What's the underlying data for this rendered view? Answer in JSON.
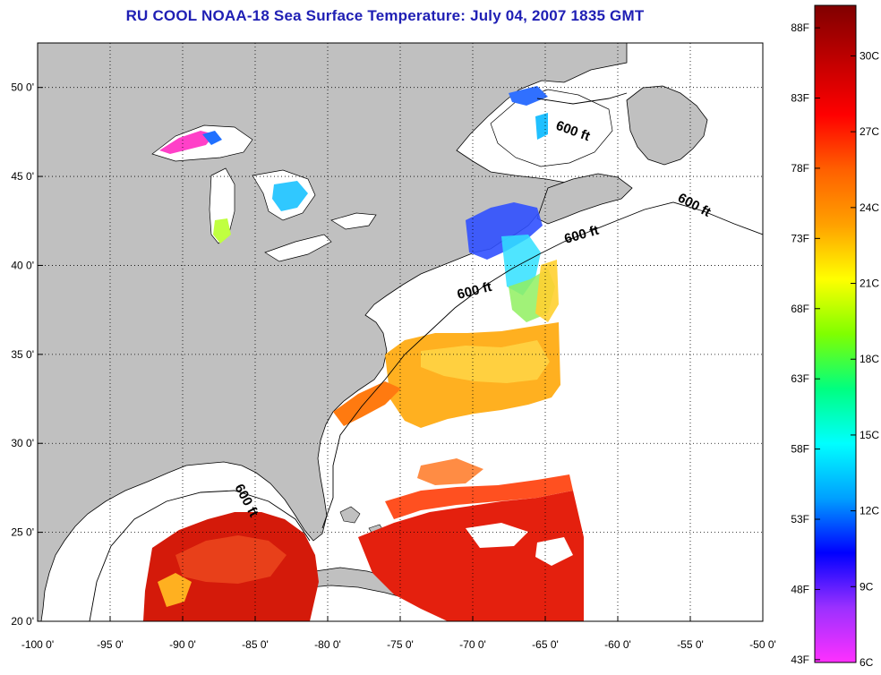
{
  "title": "RU COOL  NOAA-18  Sea Surface Temperature:  July 04, 2007 1835 GMT",
  "map": {
    "lon_labels": [
      "-100 0'",
      "-95 0'",
      "-90 0'",
      "-85 0'",
      "-80 0'",
      "-75 0'",
      "-70 0'",
      "-65 0'",
      "-60 0'",
      "-55 0'",
      "-50 0'"
    ],
    "lon_values": [
      -100,
      -95,
      -90,
      -85,
      -80,
      -75,
      -70,
      -65,
      -60,
      -55,
      -50
    ],
    "lat_labels": [
      "20 0'",
      "25 0'",
      "30 0'",
      "35 0'",
      "40 0'",
      "45 0'",
      "50 0'"
    ],
    "lat_values": [
      20,
      25,
      30,
      35,
      40,
      45,
      50
    ],
    "lon_range": [
      -100,
      -50
    ],
    "lat_range": [
      20,
      52.5
    ],
    "grid": "dotted",
    "contour_label": "600 ft",
    "colors": {
      "land": "#c0c0c0",
      "ocean": "#ffffff"
    }
  },
  "colorbar": {
    "f_labels": [
      "88F",
      "83F",
      "78F",
      "73F",
      "68F",
      "63F",
      "58F",
      "53F",
      "48F",
      "43F"
    ],
    "f_values": [
      88,
      83,
      78,
      73,
      68,
      63,
      58,
      53,
      48,
      43
    ],
    "c_labels": [
      "30C",
      "27C",
      "24C",
      "21C",
      "18C",
      "15C",
      "12C",
      "9C",
      "6C"
    ],
    "c_values": [
      30,
      27,
      24,
      21,
      18,
      15,
      12,
      9,
      6
    ],
    "range_c": [
      6,
      32
    ],
    "colors": [
      "#ff30ff",
      "#9b30ff",
      "#0000ff",
      "#00a0ff",
      "#00ffff",
      "#00ff80",
      "#80ff00",
      "#ffff00",
      "#ffa000",
      "#ff6000",
      "#ff0000",
      "#c00000",
      "#800000"
    ]
  }
}
